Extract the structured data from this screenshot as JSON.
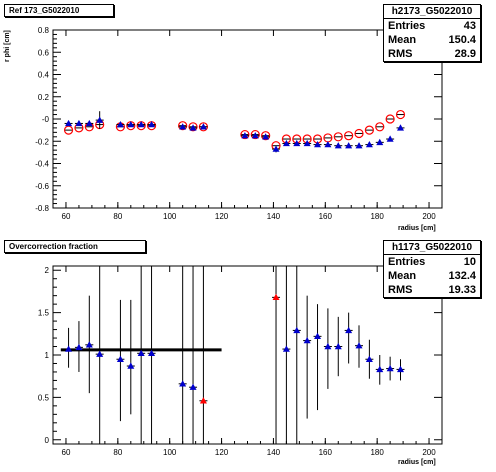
{
  "chart_data": [
    {
      "type": "scatter",
      "title": "Ref 173_G5022010",
      "xlabel": "radius [cm]",
      "ylabel": "r phi [cm]",
      "xlim": [
        55,
        205
      ],
      "ylim": [
        -0.8,
        0.8
      ],
      "xticks": [
        60,
        80,
        100,
        120,
        140,
        160,
        180,
        200
      ],
      "yticks": [
        -0.8,
        -0.6,
        -0.4,
        -0.2,
        0,
        0.2,
        0.4,
        0.6,
        0.8
      ],
      "ytick_labels": [
        "-0.8",
        "-0.6",
        "-0.4",
        "-0.2",
        "-0",
        "0.2",
        "0.4",
        "0.6",
        "0.8"
      ],
      "stats": {
        "name": "h2173_G5022010",
        "entries": "43",
        "mean": "150.4",
        "rms": "28.9"
      },
      "series": [
        {
          "marker": "open-circle",
          "color": "#ff0000",
          "x": [
            61,
            65,
            69,
            73,
            81,
            85,
            89,
            93,
            105,
            109,
            113,
            129,
            133,
            137,
            141,
            145,
            149,
            153,
            157,
            161,
            165,
            169,
            173,
            177,
            181,
            185,
            189
          ],
          "y": [
            -0.1,
            -0.08,
            -0.07,
            -0.05,
            -0.07,
            -0.06,
            -0.06,
            -0.06,
            -0.06,
            -0.07,
            -0.07,
            -0.14,
            -0.14,
            -0.15,
            -0.24,
            -0.18,
            -0.18,
            -0.18,
            -0.18,
            -0.17,
            -0.16,
            -0.15,
            -0.13,
            -0.1,
            -0.07,
            0.0,
            0.04
          ]
        },
        {
          "marker": "filled-triangle",
          "color": "#0000cc",
          "x": [
            61,
            65,
            69,
            73,
            81,
            85,
            89,
            93,
            105,
            109,
            113,
            129,
            133,
            137,
            141,
            145,
            149,
            153,
            157,
            161,
            165,
            169,
            173,
            177,
            181,
            185,
            189
          ],
          "y": [
            -0.04,
            -0.04,
            -0.04,
            -0.01,
            -0.05,
            -0.05,
            -0.05,
            -0.05,
            -0.07,
            -0.08,
            -0.07,
            -0.15,
            -0.15,
            -0.16,
            -0.27,
            -0.22,
            -0.22,
            -0.22,
            -0.23,
            -0.23,
            -0.24,
            -0.24,
            -0.24,
            -0.23,
            -0.21,
            -0.18,
            -0.08
          ],
          "yerr": [
            0.02,
            0.02,
            0.02,
            0.08,
            0.02,
            0.02,
            0.02,
            0.02,
            0.02,
            0.02,
            0.02,
            0.02,
            0.02,
            0.02,
            0.03,
            0.02,
            0.02,
            0.02,
            0.02,
            0.02,
            0.02,
            0.02,
            0.02,
            0.02,
            0.02,
            0.02,
            0.02
          ]
        }
      ]
    },
    {
      "type": "scatter",
      "title": "Overcorrection fraction",
      "xlabel": "radius [cm]",
      "ylabel": "",
      "xlim": [
        55,
        205
      ],
      "ylim": [
        -0.05,
        2.05
      ],
      "xticks": [
        60,
        80,
        100,
        120,
        140,
        160,
        180,
        200
      ],
      "yticks": [
        0,
        0.5,
        1,
        1.5,
        2
      ],
      "ytick_labels": [
        "0",
        "0.5",
        "1",
        "1.5",
        "2"
      ],
      "stats": {
        "name": "h1173_G5022010",
        "entries": "10",
        "mean": "132.4",
        "rms": "19.33"
      },
      "reference_line": {
        "x": [
          58,
          120
        ],
        "y": 1.06
      },
      "series": [
        {
          "marker": "filled-triangle",
          "color": "#0000cc",
          "x": [
            61,
            65,
            69,
            73,
            81,
            85,
            89,
            93,
            105,
            109,
            145,
            149,
            153,
            157,
            161,
            165,
            169,
            173,
            177,
            181,
            185,
            189
          ],
          "y": [
            1.07,
            1.09,
            1.12,
            1.01,
            0.95,
            0.87,
            1.02,
            1.02,
            0.66,
            0.62,
            1.07,
            1.29,
            1.17,
            1.22,
            1.1,
            1.1,
            1.29,
            1.11,
            0.95,
            0.83,
            0.84,
            0.83
          ],
          "ylow": [
            0.85,
            0.8,
            0.55,
            -0.05,
            0.22,
            0.3,
            -0.05,
            -0.05,
            -0.05,
            -0.05,
            -0.05,
            -0.05,
            0.25,
            0.35,
            0.6,
            0.75,
            0.9,
            0.85,
            0.72,
            0.65,
            0.7,
            0.7
          ],
          "yhigh": [
            1.32,
            1.4,
            1.7,
            2.05,
            1.65,
            1.65,
            2.05,
            2.05,
            2.05,
            2.05,
            2.05,
            2.05,
            1.7,
            1.6,
            1.55,
            1.45,
            1.5,
            1.35,
            1.18,
            1.0,
            0.98,
            0.95
          ]
        },
        {
          "marker": "filled-triangle",
          "color": "#ff0000",
          "x": [
            113,
            141
          ],
          "y": [
            0.46,
            1.68
          ],
          "ylow": [
            -0.05,
            -0.05
          ],
          "yhigh": [
            2.05,
            2.05
          ]
        }
      ]
    }
  ]
}
